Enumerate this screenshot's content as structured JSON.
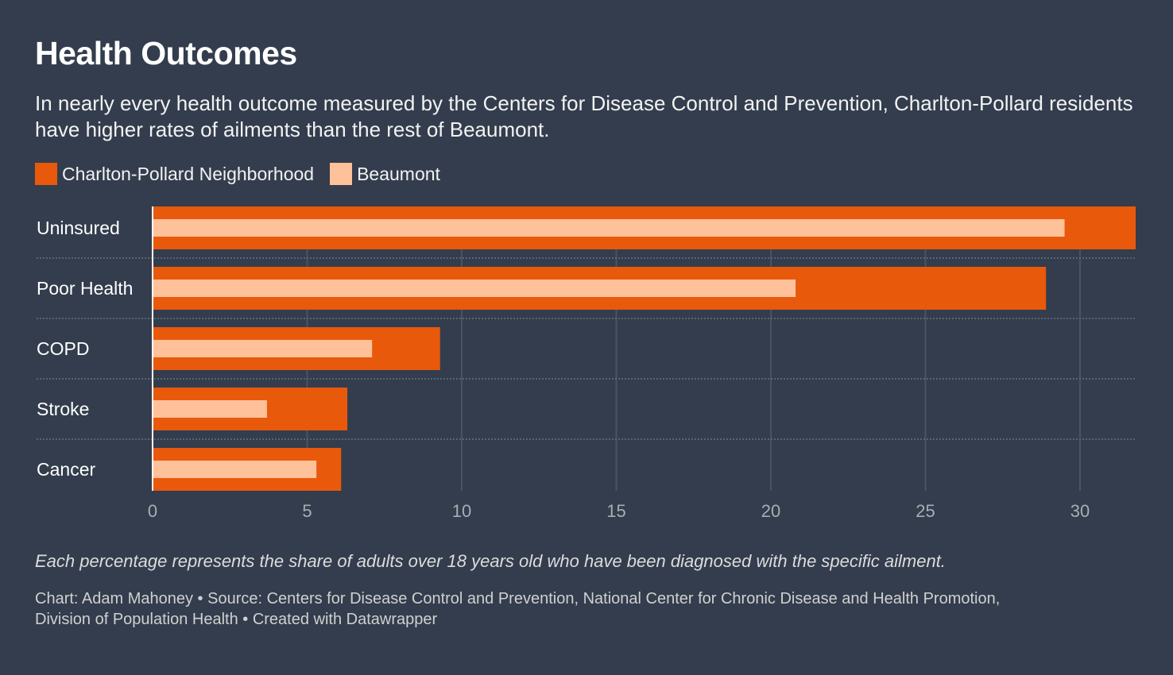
{
  "header": {
    "title": "Health Outcomes",
    "subtitle": "In nearly every health outcome measured by the Centers for Disease Control and Prevention, Charlton-Pollard residents have higher rates of ailments than the rest of Beaumont."
  },
  "legend": [
    {
      "label": "Charlton-Pollard Neighborhood",
      "color": "#e8590c"
    },
    {
      "label": "Beaumont",
      "color": "#ffc19a"
    }
  ],
  "footer": {
    "note": "Each percentage represents the share of adults over 18 years old who have been diagnosed with the specific ailment.",
    "source_line1": "Chart: Adam Mahoney • Source: Centers for Disease Control and Prevention, National Center for Chronic Disease and Health Promotion,",
    "source_line2": "Division of Population Health • Created with Datawrapper"
  },
  "chart_data": {
    "type": "bar",
    "orientation": "horizontal",
    "title": "Health Outcomes",
    "xlabel": "",
    "ylabel": "",
    "categories": [
      "Uninsured",
      "Poor Health",
      "COPD",
      "Stroke",
      "Cancer"
    ],
    "series": [
      {
        "name": "Charlton-Pollard Neighborhood",
        "color": "#e8590c",
        "values": [
          31.8,
          28.9,
          9.3,
          6.3,
          6.1
        ]
      },
      {
        "name": "Beaumont",
        "color": "#ffc19a",
        "values": [
          29.5,
          20.8,
          7.1,
          3.7,
          5.3
        ]
      }
    ],
    "xlim": [
      0,
      31.8
    ],
    "xticks": [
      0,
      5,
      10,
      15,
      20,
      25,
      30
    ],
    "grid": true,
    "legend_position": "top-left",
    "style": "overlapping bars (Beaumont bar drawn inside Charlton-Pollard bar)"
  }
}
